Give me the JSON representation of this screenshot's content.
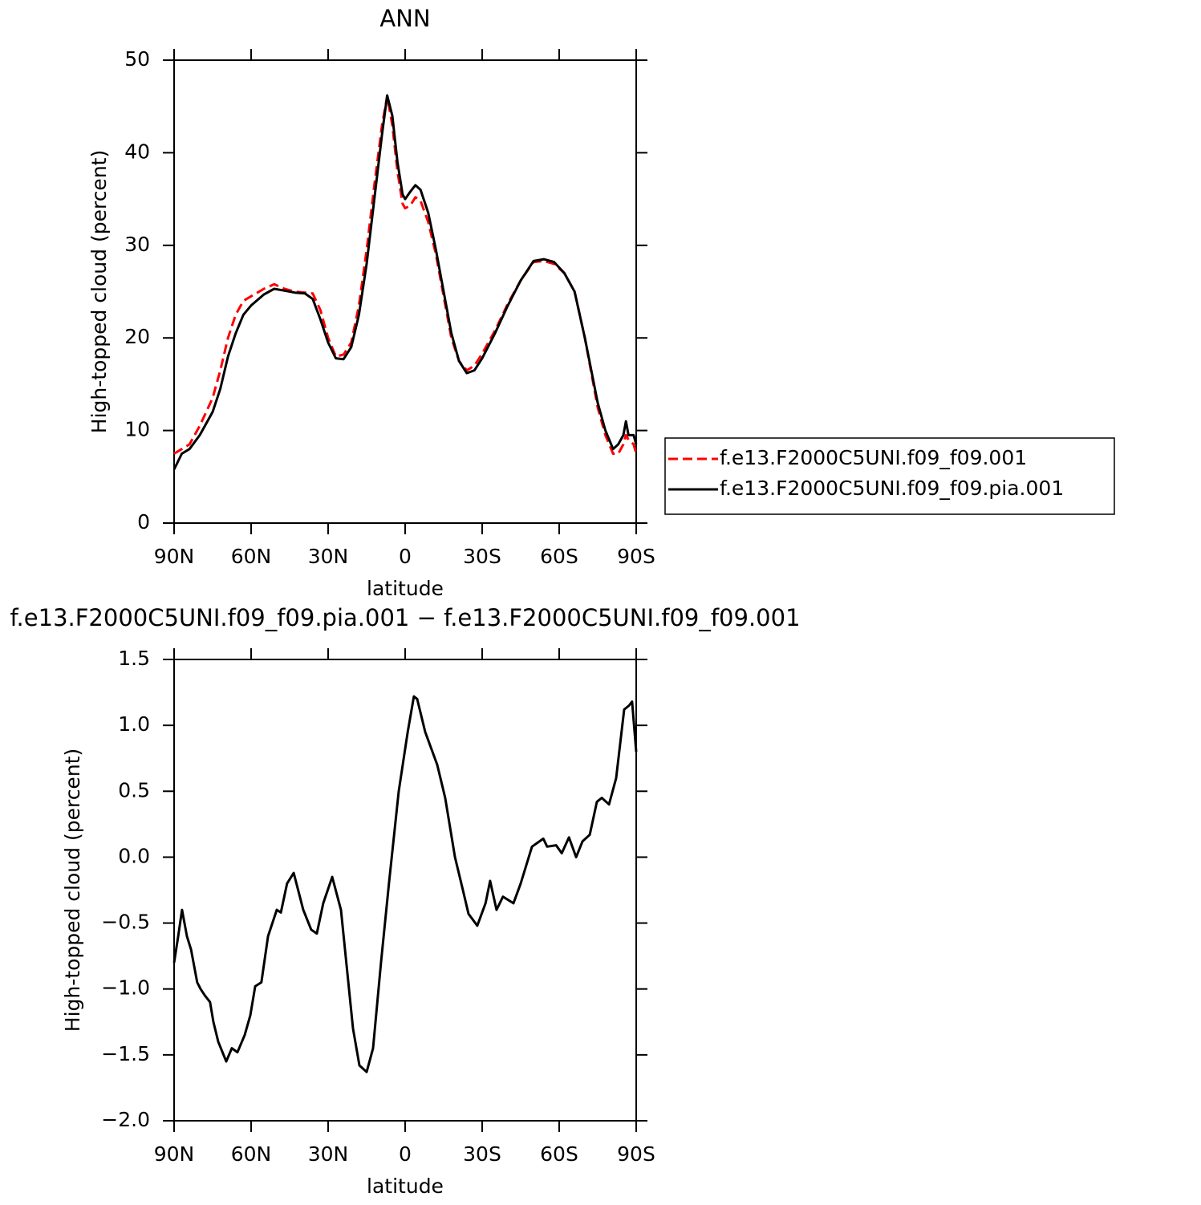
{
  "chart_data": [
    {
      "type": "line",
      "title": "ANN",
      "xlabel": "latitude",
      "ylabel": "High-topped cloud (percent)",
      "x": [
        90,
        87,
        84,
        80,
        75,
        72,
        69,
        66,
        63,
        60,
        55,
        51,
        47,
        43,
        39,
        36,
        33,
        30,
        27,
        24,
        21,
        18,
        15,
        12,
        9,
        7,
        5,
        3,
        1,
        0,
        -2,
        -4,
        -6,
        -9,
        -12,
        -15,
        -18,
        -21,
        -24,
        -27,
        -30,
        -35,
        -40,
        -45,
        -50,
        -54,
        -58,
        -62,
        -66,
        -70,
        -75,
        -78,
        -81,
        -83,
        -85,
        -86,
        -87,
        -89,
        -90
      ],
      "xlim": [
        90,
        -90
      ],
      "xticks": [
        {
          "value": 90,
          "label": "90N"
        },
        {
          "value": 60,
          "label": "60N"
        },
        {
          "value": 30,
          "label": "30N"
        },
        0,
        {
          "value": -30,
          "label": "30S"
        },
        {
          "value": -60,
          "label": "60S"
        },
        {
          "value": -90,
          "label": "90S"
        }
      ],
      "ylim": [
        0,
        50
      ],
      "yticks": [
        0,
        10,
        20,
        30,
        40,
        50
      ],
      "legend": "outside-right",
      "series": [
        {
          "name": "f.e13.F2000C5UNI.f09_f09.001",
          "color": "#ff0000",
          "style": "dashed",
          "values": [
            7.5,
            8,
            8.5,
            10.5,
            13.5,
            16.5,
            20,
            22.5,
            24,
            24.5,
            25.3,
            25.8,
            25.3,
            25.0,
            24.9,
            24.8,
            23,
            20,
            18,
            18.2,
            19.5,
            23.5,
            29.5,
            36.5,
            43,
            46.1,
            43,
            38,
            34.5,
            34,
            34.3,
            35.2,
            34.8,
            32.5,
            29,
            24.5,
            20,
            17.5,
            16.5,
            17,
            18.3,
            20.8,
            23.7,
            26.2,
            28.2,
            28.3,
            28.0,
            27,
            25,
            20,
            12.5,
            9.5,
            7.5,
            7.5,
            8.5,
            9.5,
            9,
            8.5,
            7.5
          ]
        },
        {
          "name": "f.e13.F2000C5UNI.f09_f09.pia.001",
          "color": "#000000",
          "style": "solid",
          "values": [
            5.8,
            7.5,
            8,
            9.5,
            12,
            14.5,
            18,
            20.5,
            22.5,
            23.5,
            24.7,
            25.3,
            25.1,
            24.9,
            24.8,
            24.2,
            22,
            19.5,
            17.8,
            17.7,
            19,
            22.5,
            28,
            35,
            42,
            46.2,
            44,
            39,
            35.5,
            35,
            35.8,
            36.5,
            36,
            33.5,
            29.5,
            25,
            20.5,
            17.5,
            16.2,
            16.5,
            17.8,
            20.5,
            23.5,
            26.2,
            28.3,
            28.5,
            28.2,
            27,
            25,
            20,
            13,
            10,
            8,
            8.5,
            9.5,
            11,
            9.5,
            9.5,
            8.5
          ]
        }
      ]
    },
    {
      "type": "line",
      "title": "f.e13.F2000C5UNI.f09_f09.pia.001 − f.e13.F2000C5UNI.f09_f09.001",
      "xlabel": "latitude",
      "ylabel": "High-topped cloud (percent)",
      "x": [
        90,
        88.4,
        86.9,
        85,
        83.4,
        81,
        79.7,
        78,
        76,
        74.7,
        72.8,
        69.7,
        67.5,
        65.3,
        62.5,
        60.3,
        58.4,
        56,
        53.4,
        50,
        48.4,
        46,
        43.4,
        39.7,
        36.6,
        34.4,
        31.9,
        28.4,
        25,
        20.3,
        17.8,
        15,
        12.5,
        9.4,
        6.3,
        2.5,
        -1,
        -3.4,
        -4.7,
        -7.8,
        -12.5,
        -15.6,
        -19.4,
        -22.5,
        -24.7,
        -28.1,
        -31.3,
        -33.1,
        -35.6,
        -38.1,
        -42.2,
        -45,
        -49.4,
        -53.8,
        -55.3,
        -58.8,
        -61,
        -63.8,
        -66.6,
        -69.1,
        -71.9,
        -74.7,
        -76.6,
        -79.4,
        -82.2,
        -85.3,
        -87.2,
        -88.4,
        -90
      ],
      "xlim": [
        90,
        -90
      ],
      "xticks": [
        {
          "value": 90,
          "label": "90N"
        },
        {
          "value": 60,
          "label": "60N"
        },
        {
          "value": 30,
          "label": "30N"
        },
        0,
        {
          "value": -30,
          "label": "30S"
        },
        {
          "value": -60,
          "label": "60S"
        },
        {
          "value": -90,
          "label": "90S"
        }
      ],
      "ylim": [
        -2,
        1.5
      ],
      "yticks": [
        {
          "value": -2,
          "label": "−2.0"
        },
        {
          "value": -1.5,
          "label": "−1.5"
        },
        {
          "value": -1,
          "label": "−1.0"
        },
        {
          "value": -0.5,
          "label": "−0.5"
        },
        {
          "value": 0,
          "label": "0.0"
        },
        0.5,
        {
          "value": 1,
          "label": "1.0"
        },
        1.5
      ],
      "series": [
        {
          "color": "#000000",
          "style": "solid",
          "values": [
            -0.8,
            -0.6,
            -0.4,
            -0.6,
            -0.7,
            -0.95,
            -1.0,
            -1.05,
            -1.1,
            -1.25,
            -1.4,
            -1.55,
            -1.45,
            -1.48,
            -1.35,
            -1.2,
            -0.98,
            -0.95,
            -0.6,
            -0.4,
            -0.42,
            -0.2,
            -0.12,
            -0.4,
            -0.55,
            -0.58,
            -0.35,
            -0.15,
            -0.4,
            -1.3,
            -1.58,
            -1.63,
            -1.45,
            -0.8,
            -0.2,
            0.5,
            0.95,
            1.22,
            1.2,
            0.95,
            0.7,
            0.45,
            0.0,
            -0.25,
            -0.43,
            -0.52,
            -0.35,
            -0.18,
            -0.4,
            -0.3,
            -0.35,
            -0.2,
            0.08,
            0.14,
            0.08,
            0.09,
            0.03,
            0.15,
            0.0,
            0.12,
            0.17,
            0.42,
            0.45,
            0.4,
            0.6,
            1.12,
            1.15,
            1.18,
            0.8
          ]
        }
      ]
    }
  ]
}
